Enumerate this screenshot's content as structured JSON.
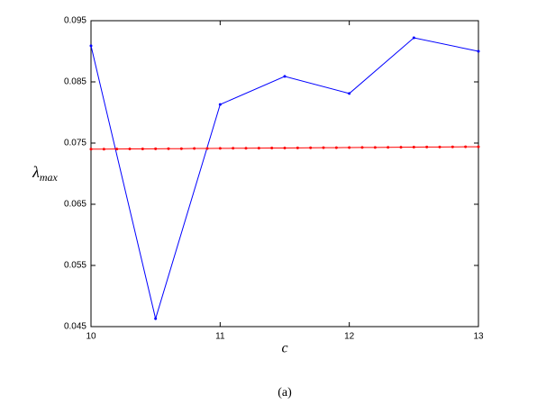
{
  "chart_data": {
    "type": "line",
    "y_label": {
      "symbol": "λ",
      "subscript": "max"
    },
    "x_label": "c",
    "caption": "(a)",
    "xlim": [
      10,
      13
    ],
    "xticks": [
      10,
      11,
      12,
      13
    ],
    "ylim": [
      0.045,
      0.095
    ],
    "yticks": [
      0.045,
      0.055,
      0.065,
      0.075,
      0.085,
      0.095
    ],
    "grid": false,
    "series": [
      {
        "color": "#0000ff",
        "x": [
          10,
          10.5,
          11,
          11.5,
          12,
          12.5,
          13
        ],
        "values": [
          0.0909,
          0.0463,
          0.0813,
          0.0859,
          0.0831,
          0.0922,
          0.09
        ]
      },
      {
        "color": "#ff0000",
        "x": [
          10,
          10.1,
          10.2,
          10.3,
          10.4,
          10.5,
          10.6,
          10.7,
          10.8,
          10.9,
          11,
          11.1,
          11.2,
          11.3,
          11.4,
          11.5,
          11.6,
          11.7,
          11.8,
          11.9,
          12,
          12.1,
          12.2,
          12.3,
          12.4,
          12.5,
          12.6,
          12.7,
          12.8,
          12.9,
          13
        ],
        "values": [
          0.074,
          0.07401,
          0.07403,
          0.07404,
          0.07405,
          0.07407,
          0.07408,
          0.07409,
          0.07411,
          0.07412,
          0.07413,
          0.07415,
          0.07416,
          0.07417,
          0.07419,
          0.0742,
          0.07421,
          0.07423,
          0.07424,
          0.07425,
          0.07427,
          0.07428,
          0.07429,
          0.07431,
          0.07432,
          0.07433,
          0.07435,
          0.07436,
          0.07437,
          0.07439,
          0.0744
        ]
      }
    ]
  }
}
